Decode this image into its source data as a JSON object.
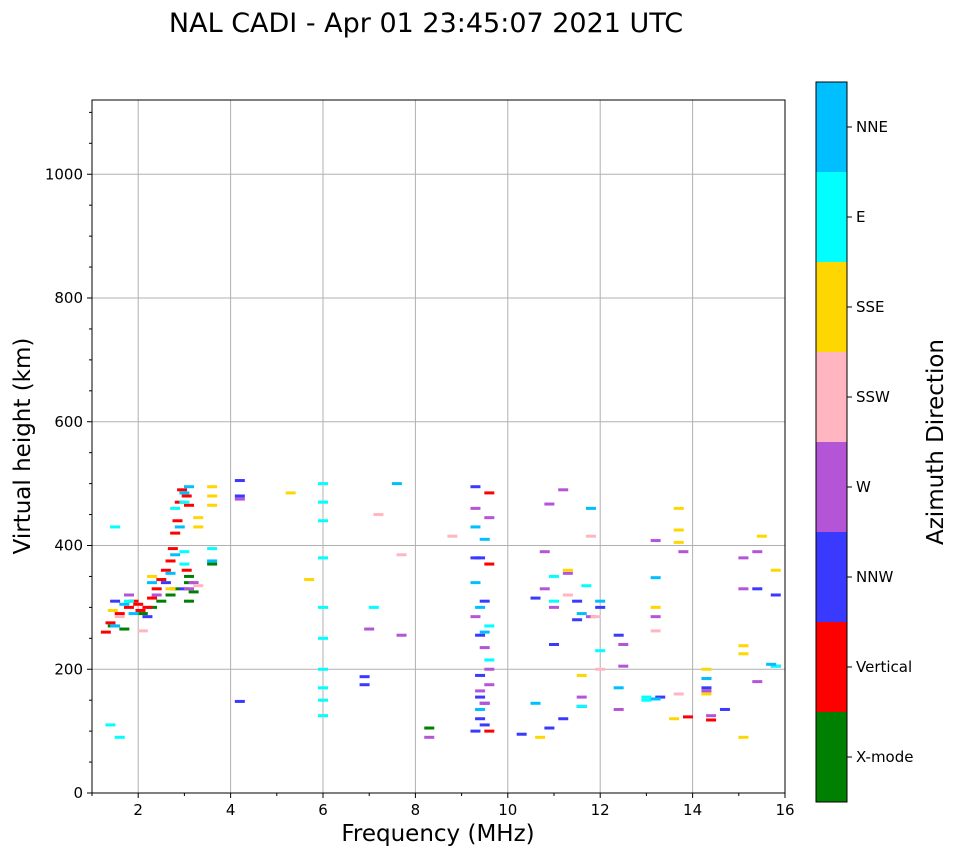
{
  "chart_data": {
    "type": "scatter",
    "title": "NAL CADI - Apr 01 23:45:07 2021 UTC",
    "xlabel": "Frequency (MHz)",
    "ylabel": "Virtual height (km)",
    "xlim": [
      1,
      16
    ],
    "ylim": [
      0,
      1120
    ],
    "xticks": [
      "2",
      "4",
      "6",
      "8",
      "10",
      "12",
      "14",
      "16"
    ],
    "yticks": [
      "0",
      "200",
      "400",
      "600",
      "800",
      "1000"
    ],
    "grid": true,
    "colorbar": {
      "label": "Azimuth Direction",
      "categories": [
        {
          "name": "X-mode",
          "color": "#008000"
        },
        {
          "name": "Vertical",
          "color": "#ff0000"
        },
        {
          "name": "NNW",
          "color": "#3a3aff"
        },
        {
          "name": "W",
          "color": "#b455d8"
        },
        {
          "name": "SSW",
          "color": "#ffb6c1"
        },
        {
          "name": "SSE",
          "color": "#ffd700"
        },
        {
          "name": "E",
          "color": "#00ffff"
        },
        {
          "name": "NNE",
          "color": "#00bfff"
        }
      ]
    },
    "series": [
      {
        "name": "X-mode",
        "points": [
          [
            1.45,
            270
          ],
          [
            1.7,
            265
          ],
          [
            2.1,
            290
          ],
          [
            2.3,
            300
          ],
          [
            2.5,
            310
          ],
          [
            2.7,
            320
          ],
          [
            2.8,
            330
          ],
          [
            3.1,
            310
          ],
          [
            3.2,
            325
          ],
          [
            3.1,
            340
          ],
          [
            3.1,
            350
          ],
          [
            3.6,
            370
          ],
          [
            8.3,
            105
          ]
        ]
      },
      {
        "name": "Vertical",
        "points": [
          [
            1.3,
            260
          ],
          [
            1.4,
            275
          ],
          [
            1.6,
            290
          ],
          [
            1.8,
            300
          ],
          [
            1.9,
            310
          ],
          [
            2.0,
            305
          ],
          [
            2.05,
            295
          ],
          [
            2.2,
            300
          ],
          [
            2.3,
            315
          ],
          [
            2.4,
            330
          ],
          [
            2.5,
            345
          ],
          [
            2.6,
            360
          ],
          [
            2.7,
            375
          ],
          [
            2.75,
            395
          ],
          [
            2.8,
            420
          ],
          [
            2.85,
            440
          ],
          [
            2.9,
            470
          ],
          [
            2.95,
            490
          ],
          [
            3.05,
            480
          ],
          [
            3.1,
            465
          ],
          [
            3.05,
            360
          ],
          [
            9.6,
            485
          ],
          [
            9.6,
            370
          ],
          [
            9.6,
            100
          ],
          [
            13.9,
            123
          ],
          [
            14.4,
            118
          ]
        ]
      },
      {
        "name": "NNW",
        "points": [
          [
            1.5,
            310
          ],
          [
            2.2,
            285
          ],
          [
            2.6,
            340
          ],
          [
            3.0,
            330
          ],
          [
            4.2,
            505
          ],
          [
            4.2,
            480
          ],
          [
            4.2,
            148
          ],
          [
            9.3,
            495
          ],
          [
            9.3,
            380
          ],
          [
            9.4,
            380
          ],
          [
            9.5,
            310
          ],
          [
            9.4,
            255
          ],
          [
            9.4,
            190
          ],
          [
            9.4,
            155
          ],
          [
            9.5,
            145
          ],
          [
            9.4,
            120
          ],
          [
            9.5,
            110
          ],
          [
            9.3,
            100
          ],
          [
            10.3,
            95
          ],
          [
            10.6,
            315
          ],
          [
            11.0,
            240
          ],
          [
            10.9,
            105
          ],
          [
            11.2,
            120
          ],
          [
            11.6,
            140
          ],
          [
            12.4,
            255
          ],
          [
            13.3,
            155
          ],
          [
            14.3,
            185
          ],
          [
            14.3,
            170
          ],
          [
            14.7,
            135
          ],
          [
            15.4,
            330
          ],
          [
            15.8,
            320
          ],
          [
            6.9,
            188
          ],
          [
            6.9,
            175
          ],
          [
            11.5,
            280
          ],
          [
            12.0,
            300
          ],
          [
            11.5,
            310
          ]
        ]
      },
      {
        "name": "W",
        "points": [
          [
            1.8,
            320
          ],
          [
            2.4,
            320
          ],
          [
            3.1,
            330
          ],
          [
            3.2,
            340
          ],
          [
            4.2,
            475
          ],
          [
            7.0,
            265
          ],
          [
            7.7,
            255
          ],
          [
            8.3,
            90
          ],
          [
            9.3,
            460
          ],
          [
            9.6,
            445
          ],
          [
            9.3,
            285
          ],
          [
            9.5,
            235
          ],
          [
            9.6,
            200
          ],
          [
            9.6,
            175
          ],
          [
            9.4,
            165
          ],
          [
            9.5,
            145
          ],
          [
            10.9,
            467
          ],
          [
            10.8,
            390
          ],
          [
            10.8,
            330
          ],
          [
            11.0,
            300
          ],
          [
            11.2,
            490
          ],
          [
            11.3,
            355
          ],
          [
            11.6,
            155
          ],
          [
            11.8,
            285
          ],
          [
            12.5,
            240
          ],
          [
            12.5,
            205
          ],
          [
            12.4,
            135
          ],
          [
            13.2,
            408
          ],
          [
            13.2,
            285
          ],
          [
            13.8,
            390
          ],
          [
            14.3,
            165
          ],
          [
            14.4,
            125
          ],
          [
            15.1,
            380
          ],
          [
            15.1,
            330
          ],
          [
            15.4,
            390
          ],
          [
            15.4,
            180
          ],
          [
            15.8,
            205
          ]
        ]
      },
      {
        "name": "SSW",
        "points": [
          [
            1.6,
            285
          ],
          [
            2.1,
            262
          ],
          [
            3.3,
            335
          ],
          [
            7.2,
            450
          ],
          [
            7.7,
            385
          ],
          [
            8.8,
            415
          ],
          [
            11.3,
            320
          ],
          [
            11.8,
            415
          ],
          [
            11.9,
            285
          ],
          [
            12.0,
            200
          ],
          [
            13.2,
            262
          ],
          [
            13.7,
            160
          ]
        ]
      },
      {
        "name": "SSE",
        "points": [
          [
            1.45,
            295
          ],
          [
            2.3,
            350
          ],
          [
            2.7,
            330
          ],
          [
            3.3,
            445
          ],
          [
            3.3,
            430
          ],
          [
            3.6,
            495
          ],
          [
            3.6,
            480
          ],
          [
            3.6,
            465
          ],
          [
            5.3,
            485
          ],
          [
            5.7,
            345
          ],
          [
            10.7,
            90
          ],
          [
            11.6,
            190
          ],
          [
            11.3,
            360
          ],
          [
            13.2,
            300
          ],
          [
            13.7,
            460
          ],
          [
            13.7,
            425
          ],
          [
            13.7,
            405
          ],
          [
            13.6,
            120
          ],
          [
            14.3,
            200
          ],
          [
            14.3,
            160
          ],
          [
            15.1,
            238
          ],
          [
            15.1,
            225
          ],
          [
            15.1,
            90
          ],
          [
            15.5,
            415
          ],
          [
            15.8,
            360
          ]
        ]
      },
      {
        "name": "E",
        "points": [
          [
            1.5,
            430
          ],
          [
            1.6,
            90
          ],
          [
            1.4,
            110
          ],
          [
            1.8,
            310
          ],
          [
            2.8,
            460
          ],
          [
            3.0,
            470
          ],
          [
            3.0,
            390
          ],
          [
            3.0,
            370
          ],
          [
            3.6,
            395
          ],
          [
            3.6,
            375
          ],
          [
            6.0,
            500
          ],
          [
            6.0,
            470
          ],
          [
            6.0,
            440
          ],
          [
            6.0,
            380
          ],
          [
            6.0,
            300
          ],
          [
            6.0,
            250
          ],
          [
            6.0,
            200
          ],
          [
            6.0,
            170
          ],
          [
            6.0,
            150
          ],
          [
            6.0,
            125
          ],
          [
            7.1,
            300
          ],
          [
            9.6,
            270
          ],
          [
            9.6,
            215
          ],
          [
            11.0,
            350
          ],
          [
            11.0,
            310
          ],
          [
            11.6,
            140
          ],
          [
            11.7,
            335
          ],
          [
            12.0,
            230
          ],
          [
            13.0,
            155
          ],
          [
            13.0,
            150
          ],
          [
            15.8,
            205
          ]
        ]
      },
      {
        "name": "NNE",
        "points": [
          [
            1.5,
            270
          ],
          [
            1.7,
            305
          ],
          [
            1.9,
            290
          ],
          [
            2.3,
            340
          ],
          [
            2.7,
            355
          ],
          [
            2.8,
            385
          ],
          [
            2.9,
            430
          ],
          [
            3.0,
            485
          ],
          [
            3.1,
            495
          ],
          [
            3.6,
            375
          ],
          [
            7.6,
            500
          ],
          [
            9.3,
            430
          ],
          [
            9.5,
            410
          ],
          [
            9.3,
            340
          ],
          [
            9.4,
            300
          ],
          [
            9.5,
            260
          ],
          [
            9.4,
            135
          ],
          [
            10.6,
            145
          ],
          [
            11.6,
            290
          ],
          [
            11.8,
            460
          ],
          [
            12.0,
            310
          ],
          [
            12.4,
            170
          ],
          [
            13.2,
            348
          ],
          [
            13.2,
            152
          ],
          [
            14.3,
            185
          ],
          [
            15.7,
            208
          ]
        ]
      }
    ]
  }
}
